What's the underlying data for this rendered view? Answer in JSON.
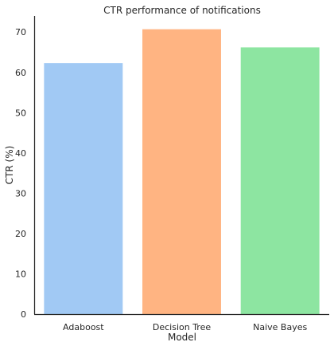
{
  "chart_data": {
    "type": "bar",
    "title": "CTR performance of notifications",
    "xlabel": "Model",
    "ylabel": "CTR (%)",
    "categories": [
      "Adaboost",
      "Decision Tree",
      "Naive Bayes"
    ],
    "values": [
      62.3,
      70.7,
      66.2
    ],
    "colors": [
      "#a1c9f4",
      "#ffb482",
      "#8de5a1"
    ],
    "ylim": [
      0,
      74
    ],
    "yticks": [
      0,
      10,
      20,
      30,
      40,
      50,
      60,
      70
    ],
    "grid": false,
    "legend": "none"
  }
}
